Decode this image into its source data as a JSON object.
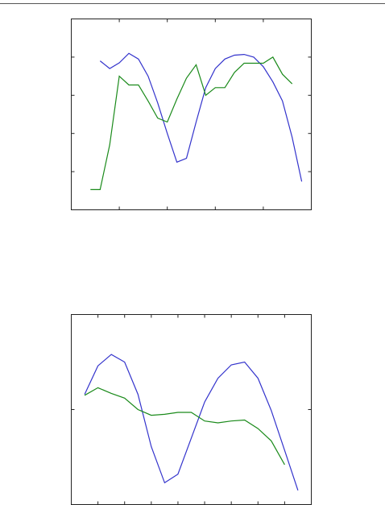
{
  "chart_data": [
    {
      "type": "line",
      "x": [
        0.4,
        0.6,
        0.8,
        1.0,
        1.2,
        1.4,
        1.6,
        1.8,
        2.0,
        2.2,
        2.4,
        2.6,
        2.8,
        3.0,
        3.2,
        3.4,
        3.6,
        3.8,
        4.0,
        4.2,
        4.4,
        4.6,
        4.8
      ],
      "series": [
        {
          "color": "#3333cc",
          "values": [
            null,
            3.9,
            3.7,
            3.85,
            4.1,
            3.95,
            3.5,
            2.8,
            2.0,
            1.25,
            1.35,
            2.3,
            3.2,
            3.7,
            3.95,
            4.05,
            4.07,
            4.0,
            3.75,
            3.35,
            2.85,
            1.9,
            0.74
          ]
        },
        {
          "color": "#1a8a1a",
          "values": [
            0.53,
            0.53,
            1.7,
            3.5,
            3.27,
            3.27,
            2.85,
            2.4,
            2.3,
            2.9,
            3.45,
            3.8,
            3.0,
            3.2,
            3.2,
            3.6,
            3.84,
            3.84,
            3.84,
            4.0,
            3.55,
            3.3,
            null
          ]
        }
      ],
      "xlim": [
        0,
        5
      ],
      "xticks": [
        1,
        2,
        3,
        4
      ],
      "ylim": [
        0,
        5
      ],
      "yticks": [
        1,
        2,
        3,
        4
      ]
    },
    {
      "type": "line",
      "x": [
        0.5,
        1.0,
        1.5,
        2.0,
        2.5,
        3.0,
        3.5,
        4.0,
        4.5,
        5.0,
        5.5,
        6.0,
        6.5,
        7.0,
        7.5,
        8.0,
        8.5
      ],
      "series": [
        {
          "color": "#3333cc",
          "values": [
            0.16,
            0.46,
            0.58,
            0.5,
            0.16,
            -0.39,
            -0.77,
            -0.68,
            -0.3,
            0.08,
            0.33,
            0.47,
            0.5,
            0.33,
            -0.01,
            -0.43,
            -0.85
          ]
        },
        {
          "color": "#1a8a1a",
          "values": [
            0.15,
            0.23,
            0.17,
            0.12,
            0.0,
            -0.06,
            -0.05,
            -0.03,
            -0.03,
            -0.12,
            -0.14,
            -0.12,
            -0.11,
            -0.2,
            -0.33,
            -0.58,
            null
          ]
        }
      ],
      "xlim": [
        0,
        9
      ],
      "xticks": [
        1,
        2,
        3,
        4,
        5,
        6,
        7,
        8
      ],
      "ylim": [
        -1,
        1
      ],
      "yticks": [
        0
      ]
    }
  ]
}
